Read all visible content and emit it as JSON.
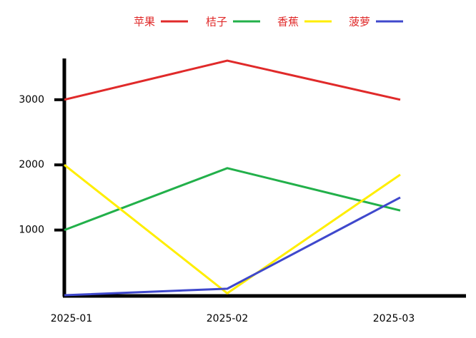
{
  "chart_data": {
    "type": "line",
    "categories": [
      "2025-01",
      "2025-02",
      "2025-03"
    ],
    "series": [
      {
        "name": "苹果",
        "color": "#e02a2a",
        "values": [
          3000,
          3600,
          3000
        ]
      },
      {
        "name": "桔子",
        "color": "#22b04a",
        "values": [
          1000,
          1950,
          1300
        ]
      },
      {
        "name": "香蕉",
        "color": "#ffee00",
        "values": [
          2000,
          30,
          1850
        ]
      },
      {
        "name": "菠萝",
        "color": "#3f48cc",
        "values": [
          0,
          100,
          1500
        ]
      }
    ],
    "ylim": [
      0,
      3600
    ],
    "yticks": [
      1000,
      2000,
      3000
    ]
  }
}
